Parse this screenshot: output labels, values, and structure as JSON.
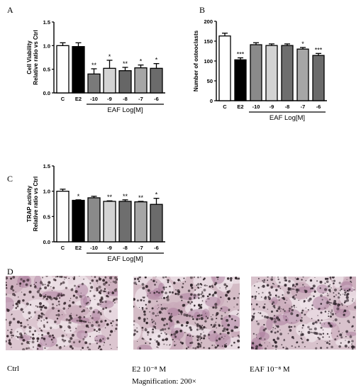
{
  "panels": {
    "A": "A",
    "B": "B",
    "C": "C",
    "D": "D"
  },
  "chart_data": [
    {
      "id": "A",
      "type": "bar",
      "title": "",
      "ylabel": "Cell Viability",
      "ylabel2": "Relative ratio vs Ctrl",
      "xlabel": "",
      "group_label": "EAF Log[M]",
      "categories": [
        "C",
        "E2",
        "-10",
        "-9",
        "-8",
        "-7",
        "-6"
      ],
      "values": [
        1.0,
        0.98,
        0.4,
        0.52,
        0.47,
        0.53,
        0.52
      ],
      "errors": [
        0.06,
        0.08,
        0.11,
        0.17,
        0.07,
        0.06,
        0.1
      ],
      "significance": [
        "",
        "",
        "**",
        "*",
        "**",
        "*",
        "*"
      ],
      "ylim": [
        0,
        1.5
      ],
      "yticks": [
        "0.0",
        "0.5",
        "1.0",
        "1.5"
      ],
      "bar_colors": [
        "#ffffff",
        "#000000",
        "#7a7a7a",
        "#d3d3d3",
        "#666666",
        "#a6a6a6",
        "#6b6b6b"
      ],
      "grid": false,
      "legend": "none"
    },
    {
      "id": "B",
      "type": "bar",
      "title": "",
      "ylabel": "Number of osteoclasts",
      "ylabel2": "",
      "xlabel": "",
      "group_label": "EAF Log[M]",
      "categories": [
        "C",
        "E2",
        "-10",
        "-9",
        "-8",
        "-7",
        "-6"
      ],
      "values": [
        163,
        103,
        141,
        139,
        139,
        130,
        114
      ],
      "errors": [
        7,
        5,
        5,
        4,
        4,
        4,
        5
      ],
      "significance": [
        "",
        "***",
        "",
        "",
        "",
        "*",
        "***"
      ],
      "ylim": [
        0,
        200
      ],
      "yticks": [
        "0",
        "50",
        "100",
        "150",
        "200"
      ],
      "bar_colors": [
        "#ffffff",
        "#000000",
        "#8a8a8a",
        "#d3d3d3",
        "#6e6e6e",
        "#a6a6a6",
        "#6b6b6b"
      ],
      "grid": false,
      "legend": "none"
    },
    {
      "id": "C",
      "type": "bar",
      "title": "",
      "ylabel": "TRAP activity",
      "ylabel2": "Relative ratio vs Ctrl",
      "xlabel": "",
      "group_label": "EAF Log[M]",
      "categories": [
        "C",
        "E2",
        "-10",
        "-9",
        "-8",
        "-7",
        "-6"
      ],
      "values": [
        1.0,
        0.82,
        0.87,
        0.8,
        0.8,
        0.79,
        0.74
      ],
      "errors": [
        0.04,
        0.01,
        0.03,
        0.01,
        0.03,
        0.01,
        0.12
      ],
      "significance": [
        "",
        "*",
        "",
        "**",
        "**",
        "**",
        "*"
      ],
      "ylim": [
        0,
        1.5
      ],
      "yticks": [
        "0.0",
        "0.5",
        "1.0",
        "1.5"
      ],
      "bar_colors": [
        "#ffffff",
        "#000000",
        "#8a8a8a",
        "#d3d3d3",
        "#6e6e6e",
        "#a6a6a6",
        "#6b6b6b"
      ],
      "grid": false,
      "legend": "none"
    }
  ],
  "micrographs": [
    {
      "name": "Ctrl",
      "base": "#dcc6d0",
      "stain": "#3a2a30",
      "seed": 11
    },
    {
      "name": "E2",
      "base": "#d4bcc6",
      "stain": "#2e2328",
      "seed": 29
    },
    {
      "name": "EAF",
      "base": "#d8c2cc",
      "stain": "#342830",
      "seed": 47
    }
  ],
  "captions": {
    "ctrl": "Ctrl",
    "e2": "E2 10⁻⁸ M",
    "eaf": "EAF 10⁻⁸ M",
    "magnification": "Magnification: 200×"
  }
}
